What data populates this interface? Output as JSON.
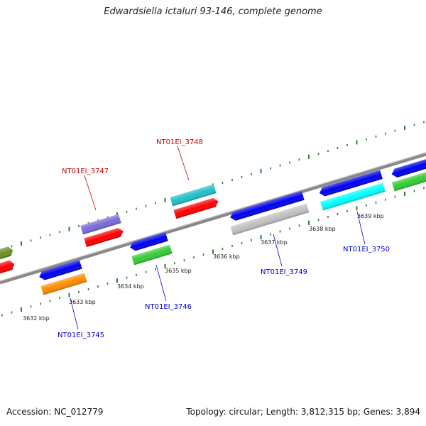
{
  "title": "Edwardsiella ictaluri 93-146, complete genome",
  "accession": "Accession: NC_012779",
  "summary": "Topology: circular; Length: 3,812,315 bp; Genes: 3,894",
  "colors": {
    "backbone": "#808080",
    "tick": "#2e7d2e",
    "label_upper": "#cc0000",
    "label_lower": "#0000cc"
  },
  "ticks": [
    {
      "label": "3632 kbp",
      "pos": 3632
    },
    {
      "label": "3633 kbp",
      "pos": 3633
    },
    {
      "label": "3634 kbp",
      "pos": 3634
    },
    {
      "label": "3635 kbp",
      "pos": 3635
    },
    {
      "label": "3636 kbp",
      "pos": 3636
    },
    {
      "label": "3637 kbp",
      "pos": 3637
    },
    {
      "label": "3638 kbp",
      "pos": 3638
    },
    {
      "label": "3639 kbp",
      "pos": 3639
    }
  ],
  "gene_labels": [
    {
      "text": "NT01EI_3745",
      "strand": "lower"
    },
    {
      "text": "NT01EI_3746",
      "strand": "lower"
    },
    {
      "text": "NT01EI_3747",
      "strand": "upper"
    },
    {
      "text": "NT01EI_3748",
      "strand": "upper"
    },
    {
      "text": "NT01EI_3749",
      "strand": "lower"
    },
    {
      "text": "NT01EI_3750",
      "strand": "lower"
    }
  ],
  "features": [
    {
      "name": "partial-left-upper",
      "color": "#6b8e23"
    },
    {
      "name": "partial-left-upper-cds",
      "color": "#ff0000"
    },
    {
      "name": "gene-3745",
      "color": "#0000ee"
    },
    {
      "name": "cds-3745",
      "color": "#ff8c00"
    },
    {
      "name": "gene-3746",
      "color": "#0000ee"
    },
    {
      "name": "cds-3746",
      "color": "#33cc33"
    },
    {
      "name": "gene-3747",
      "color": "#7a6ad8"
    },
    {
      "name": "cds-3747",
      "color": "#ff0000"
    },
    {
      "name": "gene-3748",
      "color": "#20c0c8"
    },
    {
      "name": "cds-3748",
      "color": "#ff0000"
    },
    {
      "name": "gene-3749",
      "color": "#0000ee"
    },
    {
      "name": "cds-3749",
      "color": "#c0c0c0"
    },
    {
      "name": "gene-3750",
      "color": "#0000ee"
    },
    {
      "name": "cds-3750",
      "color": "#00ffff"
    },
    {
      "name": "partial-right-gene",
      "color": "#0000ee"
    },
    {
      "name": "partial-right-cds",
      "color": "#33cc33"
    }
  ]
}
